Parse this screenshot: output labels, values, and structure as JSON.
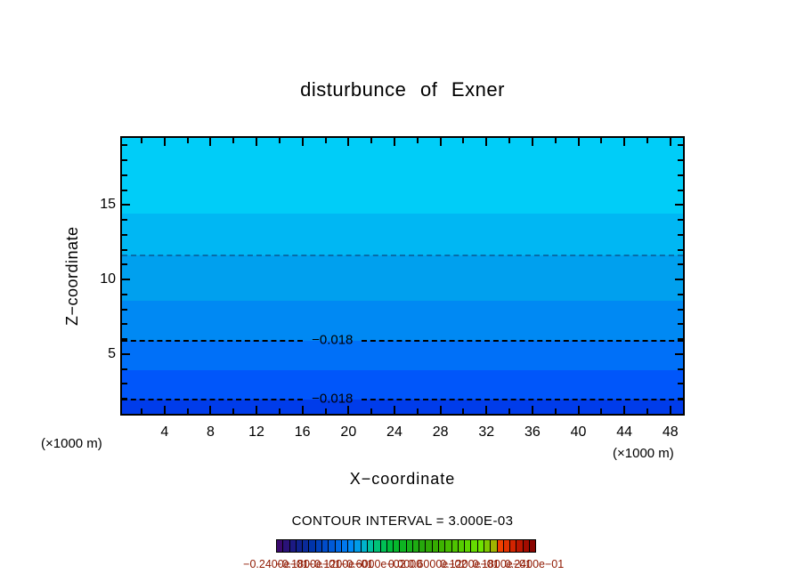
{
  "chart_data": {
    "type": "heatmap",
    "subtype": "filled-contour",
    "title": "disturbunce of Exner",
    "xlabel": "X−coordinate",
    "ylabel": "Z−coordinate",
    "x_units": "(×1000 m)",
    "y_units": "(×1000 m)",
    "contour_interval_label": "CONTOUR INTERVAL = 3.000E-03",
    "contour_interval": 0.003,
    "xlim": [
      0.3,
      49.1
    ],
    "ylim": [
      1.0,
      19.5
    ],
    "x_ticks": [
      4,
      8,
      12,
      16,
      20,
      24,
      28,
      32,
      36,
      40,
      44,
      48
    ],
    "x_minor_step": 2,
    "y_ticks": [
      5,
      10,
      15
    ],
    "y_minor_step": 1,
    "grid": false,
    "bands": [
      {
        "z_top": 19.5,
        "z_bottom": 14.4,
        "color": "#00cdf8"
      },
      {
        "z_top": 14.4,
        "z_bottom": 11.6,
        "color": "#00b7f3"
      },
      {
        "z_top": 11.6,
        "z_bottom": 8.6,
        "color": "#00a0ee"
      },
      {
        "z_top": 8.6,
        "z_bottom": 5.9,
        "color": "#0089f3"
      },
      {
        "z_top": 5.9,
        "z_bottom": 3.9,
        "color": "#0070f8"
      },
      {
        "z_top": 3.9,
        "z_bottom": 1.95,
        "color": "#0056fa"
      },
      {
        "z_top": 1.95,
        "z_bottom": 1.0,
        "color": "#003cea"
      }
    ],
    "contour_lines": [
      {
        "z": 11.6,
        "label": "",
        "color": "rgba(15,45,95,0.5)"
      },
      {
        "z": 5.9,
        "label": "−0.018",
        "label_x": 18.6,
        "color": "#000000"
      },
      {
        "z": 1.95,
        "label": "−0.018",
        "label_x": 18.6,
        "color": "#000000"
      }
    ],
    "colorbar": {
      "colors": [
        "#3a0a6e",
        "#2a1278",
        "#1c1a84",
        "#10228e",
        "#0a2a9a",
        "#0034aa",
        "#0040ba",
        "#004cca",
        "#005ad8",
        "#0068e4",
        "#0078ee",
        "#008af6",
        "#009ce8",
        "#00b2cc",
        "#00c0a0",
        "#00c278",
        "#00c055",
        "#00bc3c",
        "#06b82c",
        "#0eb422",
        "#16b01a",
        "#1eac12",
        "#26a80c",
        "#2ea806",
        "#36ac00",
        "#3eb400",
        "#46bc00",
        "#4ec400",
        "#56cc00",
        "#5ed400",
        "#66dc00",
        "#6ee400",
        "#7ec800",
        "#a0b400",
        "#f04000",
        "#e23200",
        "#d22400",
        "#ba1600",
        "#a20c00",
        "#8a0400"
      ],
      "labels": [
        "−0.2400e−01",
        "−0.1800e−01",
        "−0.1200e−01",
        "−0.6000e−02",
        "0.0000",
        "0.6000e−02",
        "0.1200e−01",
        "0.1800e−01",
        "0.2400e−01"
      ],
      "label_color": "#8f1800"
    }
  }
}
